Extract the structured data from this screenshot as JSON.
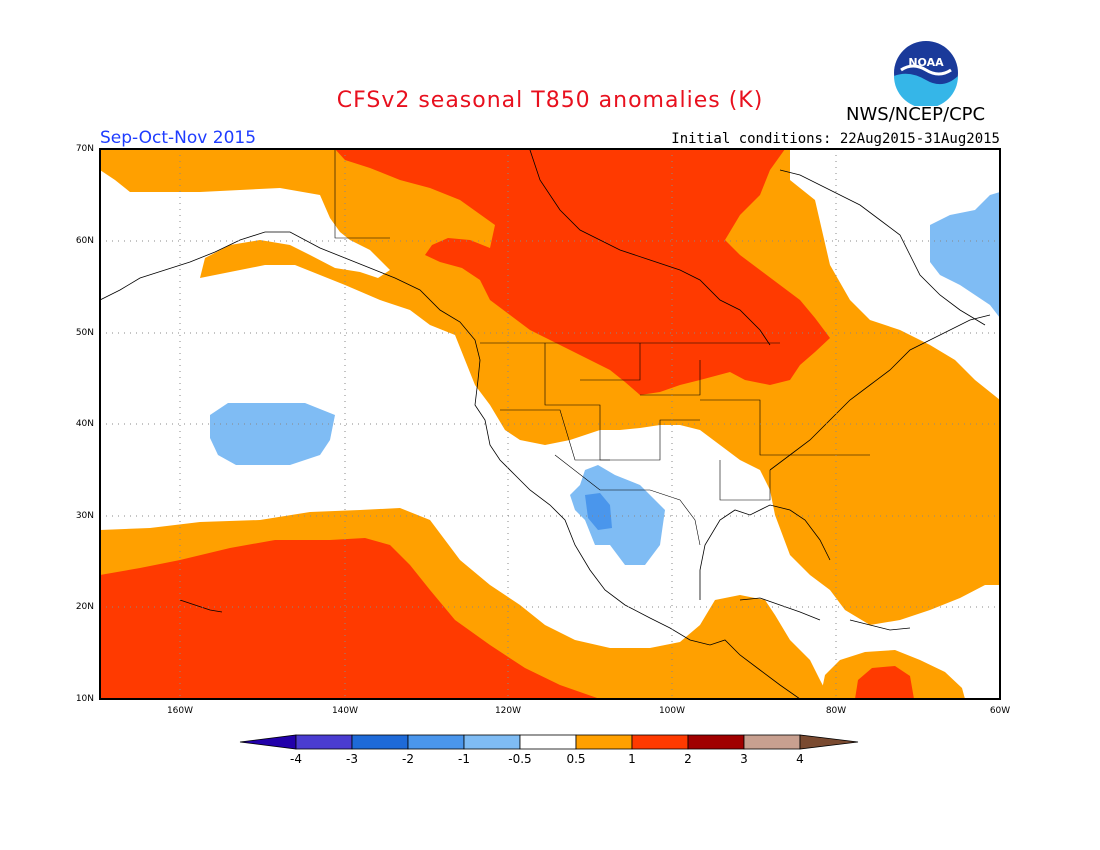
{
  "header": {
    "title": "CFSv2 seasonal T850 anomalies (K)",
    "org": "NWS/NCEP/CPC",
    "logo_text": "NOAA",
    "season": "Sep-Oct-Nov 2015",
    "initial_conditions": "Initial conditions: 22Aug2015-31Aug2015"
  },
  "axes": {
    "lat_labels": [
      "70N",
      "60N",
      "50N",
      "40N",
      "30N",
      "20N",
      "10N"
    ],
    "lon_labels": [
      "160W",
      "140W",
      "120W",
      "100W",
      "80W",
      "60W"
    ]
  },
  "legend": {
    "labels": [
      "-4",
      "-3",
      "-2",
      "-1",
      "-0.5",
      "0.5",
      "1",
      "2",
      "3",
      "4"
    ],
    "colors": [
      "#2200aa",
      "#4a3cd0",
      "#1e6ad8",
      "#4a96ec",
      "#7fbcf4",
      "#ffffff",
      "#ffa000",
      "#ff3a00",
      "#a00000",
      "#c8a090",
      "#7a4a30"
    ]
  },
  "colors": {
    "warm1": "#ffa000",
    "warm2": "#ff3a00",
    "cool1": "#7fbcf4",
    "cool2": "#4a96ec",
    "title": "#e8101e",
    "season": "#1e3cff"
  }
}
